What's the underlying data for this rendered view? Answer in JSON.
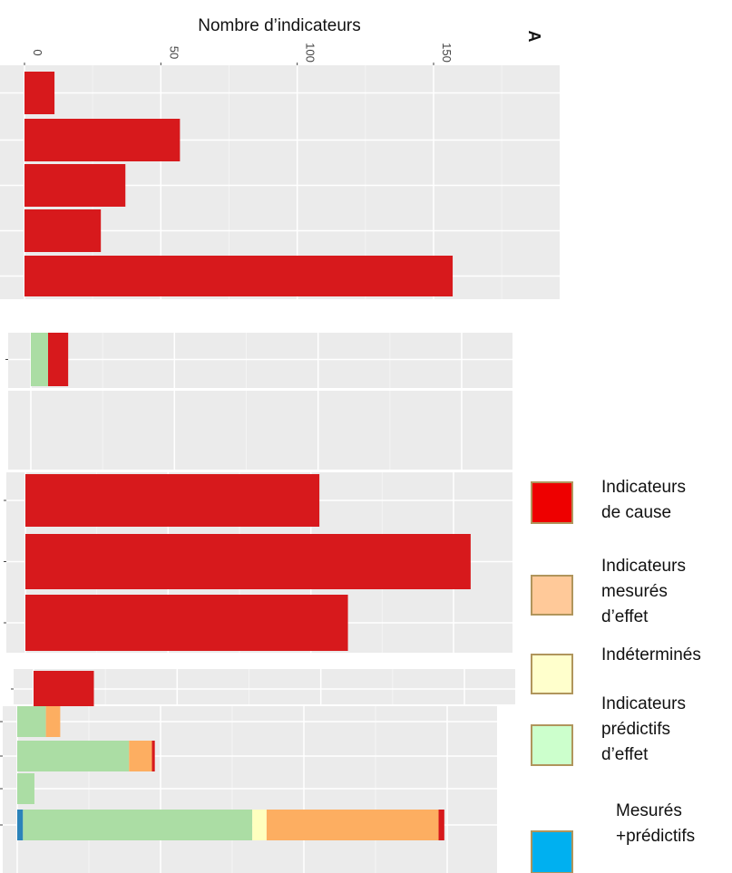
{
  "chart_data": {
    "type": "bar",
    "orientation": "horizontal",
    "stacked": true,
    "panel_label": "A",
    "xlabel": "Nombre d’indicateurs",
    "ylabel": "",
    "xlim": [
      0,
      180
    ],
    "x_ticks": [
      0,
      50,
      100,
      150
    ],
    "x_tick_labels": [
      "0",
      "50",
      "100",
      "150"
    ],
    "grid": true,
    "series": [
      {
        "key": "cause",
        "name": "Indicateurs de cause",
        "color": "#d7191c"
      },
      {
        "key": "mesures",
        "name": "Indicateurs mesurés d’effet",
        "color": "#fdae61"
      },
      {
        "key": "indet",
        "name": "Indéterminés",
        "color": "#ffffbf"
      },
      {
        "key": "predictifs",
        "name": "Indicateurs prédictifs d’effet",
        "color": "#abdda4"
      },
      {
        "key": "mesures_predictifs",
        "name": "Mesurés +prédictifs",
        "color": "#2b83ba"
      }
    ],
    "groups": [
      {
        "bars": [
          {
            "cause": 11
          },
          {
            "cause": 57
          },
          {
            "cause": 37
          },
          {
            "cause": 28
          },
          {
            "cause": 157
          }
        ]
      },
      {
        "bars": [
          {
            "predictifs": 6,
            "cause": 7
          }
        ]
      },
      {
        "bars": []
      },
      {
        "bars": [
          {
            "cause": 103
          },
          {
            "cause": 156
          },
          {
            "cause": 113
          }
        ]
      },
      {
        "bars": [
          {
            "cause": 21
          }
        ]
      },
      {
        "bars": [
          {
            "predictifs": 10,
            "mesures": 5
          },
          {
            "predictifs": 39,
            "mesures": 8,
            "cause": 1
          },
          {
            "predictifs": 6
          },
          {
            "mesures_predictifs": 2,
            "predictifs": 80,
            "indet": 5,
            "mesures": 60,
            "cause": 2
          }
        ]
      }
    ]
  },
  "legend": {
    "items": [
      {
        "lines": [
          "Indicateurs",
          "de cause"
        ],
        "color": "#ee0000"
      },
      {
        "lines": [
          "Indicateurs",
          "mesurés",
          "d’effet"
        ],
        "color": "#ffc999"
      },
      {
        "lines": [
          "Indéterminés"
        ],
        "color": "#ffffcc"
      },
      {
        "lines": [
          "Indicateurs",
          "prédictifs",
          "d’effet"
        ],
        "color": "#ccffcc"
      },
      {
        "lines": [
          "Mesurés",
          "+prédictifs"
        ],
        "color": "#00b0f0"
      }
    ]
  }
}
